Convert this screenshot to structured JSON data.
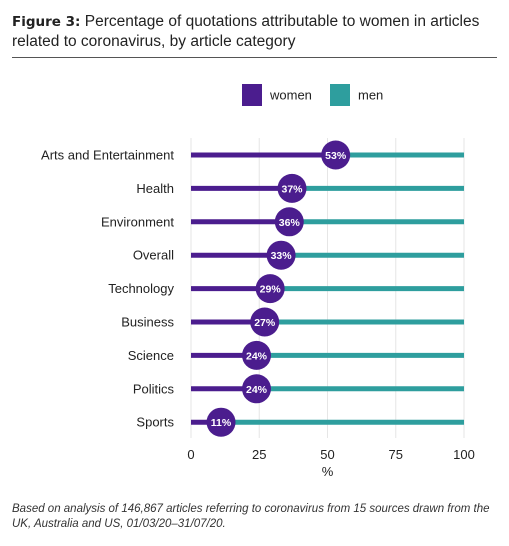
{
  "figure": {
    "label": "Figure 3:",
    "title": "Percentage of quotations attributable to women in articles related to coronavirus, by article category"
  },
  "caption": "Based on analysis of 146,867 articles referring to coronavirus from 15 sources drawn from the UK, Australia and US, 01/03/20–31/07/20.",
  "colors": {
    "women": "#4b1d8e",
    "men": "#2e9e9e",
    "grid": "#e6e6e6"
  },
  "chart_data": {
    "type": "dumbbell-bar",
    "categories": [
      "Arts and Entertainment",
      "Health",
      "Environment",
      "Overall",
      "Technology",
      "Business",
      "Science",
      "Politics",
      "Sports"
    ],
    "series": [
      {
        "name": "women",
        "values": [
          53,
          37,
          36,
          33,
          29,
          27,
          24,
          24,
          11
        ]
      },
      {
        "name": "men",
        "values": [
          47,
          63,
          64,
          67,
          71,
          73,
          76,
          76,
          89
        ]
      }
    ],
    "data_labels": [
      "53%",
      "37%",
      "36%",
      "33%",
      "29%",
      "27%",
      "24%",
      "24%",
      "11%"
    ],
    "xlim": [
      0,
      100
    ],
    "xticks": [
      "0",
      "25",
      "50",
      "75",
      "100"
    ],
    "xlabel": "%",
    "legend": {
      "position": "top",
      "entries": [
        "women",
        "men"
      ]
    },
    "grid": true
  }
}
